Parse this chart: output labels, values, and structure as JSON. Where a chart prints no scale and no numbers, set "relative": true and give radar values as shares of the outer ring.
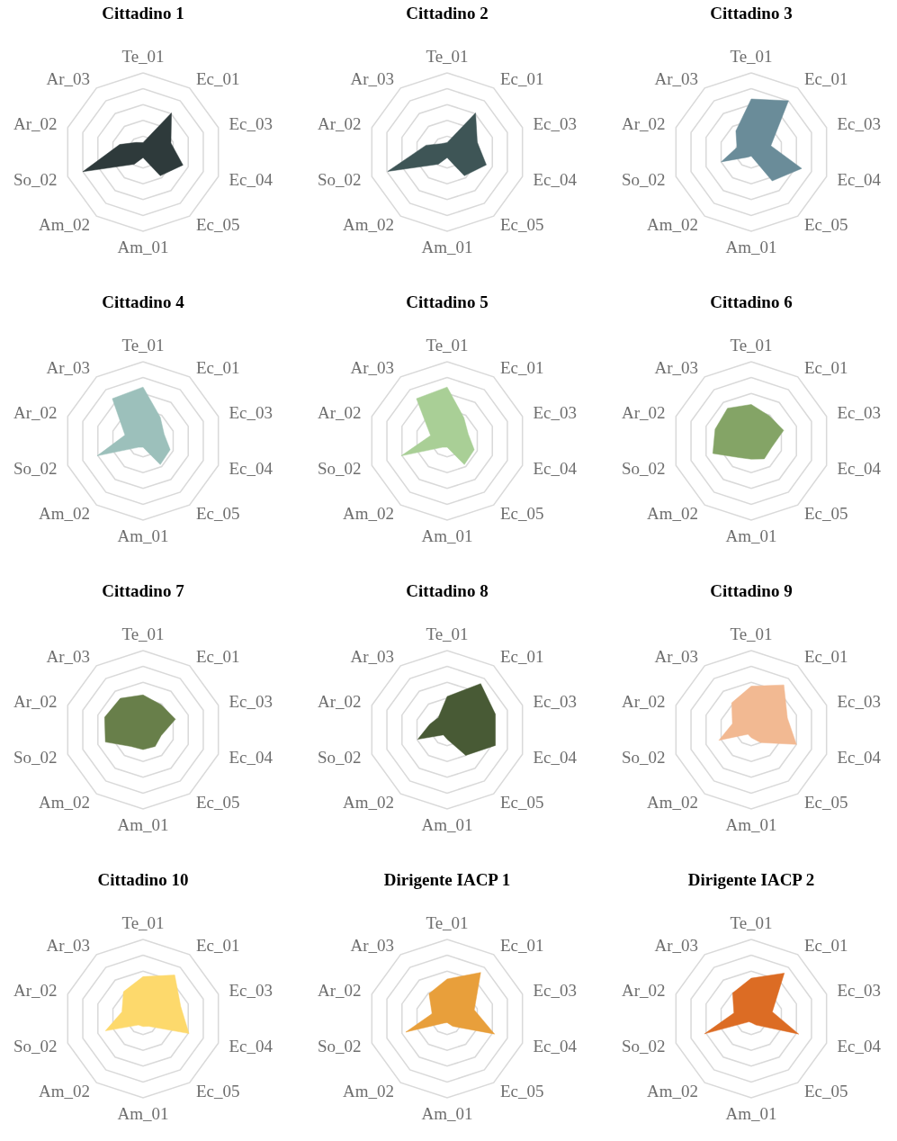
{
  "chart_data": [
    {
      "type": "radar",
      "title": "Cittadino 1",
      "categories": [
        "Te_01",
        "Ec_01",
        "Ec_03",
        "Ec_04",
        "Ec_05",
        "Am_01",
        "Am_02",
        "So_02",
        "Ar_02",
        "Ar_03"
      ],
      "relative": true,
      "grid": true,
      "series": [
        {
          "color": "#2e3a3b",
          "values": [
            0.12,
            0.61,
            0.37,
            0.53,
            0.37,
            0.07,
            0.19,
            0.8,
            0.31,
            0.15
          ]
        }
      ]
    },
    {
      "type": "radar",
      "title": "Cittadino 2",
      "categories": [
        "Te_01",
        "Ec_01",
        "Ec_03",
        "Ec_04",
        "Ec_05",
        "Am_01",
        "Am_02",
        "So_02",
        "Ar_02",
        "Ar_03"
      ],
      "relative": true,
      "grid": true,
      "series": [
        {
          "color": "#3e5556",
          "values": [
            0.12,
            0.61,
            0.4,
            0.52,
            0.37,
            0.07,
            0.19,
            0.79,
            0.28,
            0.13
          ]
        }
      ]
    },
    {
      "type": "radar",
      "title": "Cittadino 3",
      "categories": [
        "Te_01",
        "Ec_01",
        "Ec_03",
        "Ec_04",
        "Ec_05",
        "Am_01",
        "Am_02",
        "So_02",
        "Ar_02",
        "Ar_03"
      ],
      "relative": true,
      "grid": true,
      "series": [
        {
          "color": "#6a8c99",
          "values": [
            0.67,
            0.8,
            0.26,
            0.67,
            0.45,
            0.05,
            0.08,
            0.4,
            0.19,
            0.33
          ]
        }
      ]
    },
    {
      "type": "radar",
      "title": "Cittadino 4",
      "categories": [
        "Te_01",
        "Ec_01",
        "Ec_03",
        "Ec_04",
        "Ec_05",
        "Am_01",
        "Am_02",
        "So_02",
        "Ar_02",
        "Ar_03"
      ],
      "relative": true,
      "grid": true,
      "series": [
        {
          "color": "#9cc0bb",
          "values": [
            0.68,
            0.37,
            0.28,
            0.36,
            0.37,
            0.08,
            0.1,
            0.61,
            0.24,
            0.66
          ]
        }
      ]
    },
    {
      "type": "radar",
      "title": "Cittadino 5",
      "categories": [
        "Te_01",
        "Ec_01",
        "Ec_03",
        "Ec_04",
        "Ec_05",
        "Am_01",
        "Am_02",
        "So_02",
        "Ar_02",
        "Ar_03"
      ],
      "relative": true,
      "grid": true,
      "series": [
        {
          "color": "#a9cf96",
          "values": [
            0.68,
            0.36,
            0.28,
            0.36,
            0.37,
            0.08,
            0.1,
            0.61,
            0.22,
            0.66
          ]
        }
      ]
    },
    {
      "type": "radar",
      "title": "Cittadino 6",
      "categories": [
        "Te_01",
        "Ec_01",
        "Ec_03",
        "Ec_04",
        "Ec_05",
        "Am_01",
        "Am_02",
        "So_02",
        "Ar_02",
        "Ar_03"
      ],
      "relative": true,
      "grid": true,
      "series": [
        {
          "color": "#84a466",
          "values": [
            0.46,
            0.39,
            0.43,
            0.27,
            0.28,
            0.23,
            0.26,
            0.51,
            0.48,
            0.51
          ]
        }
      ]
    },
    {
      "type": "radar",
      "title": "Cittadino 7",
      "categories": [
        "Te_01",
        "Ec_01",
        "Ec_03",
        "Ec_04",
        "Ec_05",
        "Am_01",
        "Am_02",
        "So_02",
        "Ar_02",
        "Ar_03"
      ],
      "relative": true,
      "grid": true,
      "series": [
        {
          "color": "#687f4a",
          "values": [
            0.44,
            0.39,
            0.43,
            0.24,
            0.26,
            0.25,
            0.26,
            0.5,
            0.51,
            0.49
          ]
        }
      ]
    },
    {
      "type": "radar",
      "title": "Cittadino 8",
      "categories": [
        "Te_01",
        "Ec_01",
        "Ec_03",
        "Ec_04",
        "Ec_05",
        "Am_01",
        "Am_02",
        "So_02",
        "Ar_02",
        "Ar_03"
      ],
      "relative": true,
      "grid": true,
      "series": [
        {
          "color": "#485a35",
          "values": [
            0.42,
            0.72,
            0.64,
            0.64,
            0.4,
            0.12,
            0.08,
            0.39,
            0.23,
            0.19
          ]
        }
      ]
    },
    {
      "type": "radar",
      "title": "Cittadino 9",
      "categories": [
        "Te_01",
        "Ec_01",
        "Ec_03",
        "Ec_04",
        "Ec_05",
        "Am_01",
        "Am_02",
        "So_02",
        "Ar_02",
        "Ar_03"
      ],
      "relative": true,
      "grid": true,
      "series": [
        {
          "color": "#f2b992",
          "values": [
            0.55,
            0.7,
            0.48,
            0.6,
            0.2,
            0.1,
            0.07,
            0.43,
            0.25,
            0.42
          ]
        }
      ]
    },
    {
      "type": "radar",
      "title": "Cittadino 10",
      "categories": [
        "Te_01",
        "Ec_01",
        "Ec_03",
        "Ec_04",
        "Ec_05",
        "Am_01",
        "Am_02",
        "So_02",
        "Ar_02",
        "Ar_03"
      ],
      "relative": true,
      "grid": true,
      "series": [
        {
          "color": "#fdd96c",
          "values": [
            0.53,
            0.68,
            0.5,
            0.61,
            0.12,
            0.1,
            0.1,
            0.5,
            0.28,
            0.42
          ]
        }
      ]
    },
    {
      "type": "radar",
      "title": "Dirigente IACP 1",
      "categories": [
        "Te_01",
        "Ec_01",
        "Ec_03",
        "Ec_04",
        "Ec_05",
        "Am_01",
        "Am_02",
        "So_02",
        "Ar_02",
        "Ar_03"
      ],
      "relative": true,
      "grid": true,
      "series": [
        {
          "color": "#e89f3b",
          "values": [
            0.5,
            0.72,
            0.36,
            0.63,
            0.12,
            0.05,
            0.07,
            0.55,
            0.2,
            0.39
          ]
        }
      ]
    },
    {
      "type": "radar",
      "title": "Dirigente IACP 2",
      "categories": [
        "Te_01",
        "Ec_01",
        "Ec_03",
        "Ec_04",
        "Ec_05",
        "Am_01",
        "Am_02",
        "So_02",
        "Ar_02",
        "Ar_03"
      ],
      "relative": true,
      "grid": true,
      "series": [
        {
          "color": "#dc6c24",
          "values": [
            0.51,
            0.71,
            0.28,
            0.63,
            0.1,
            0.05,
            0.05,
            0.62,
            0.23,
            0.4
          ]
        }
      ]
    }
  ]
}
